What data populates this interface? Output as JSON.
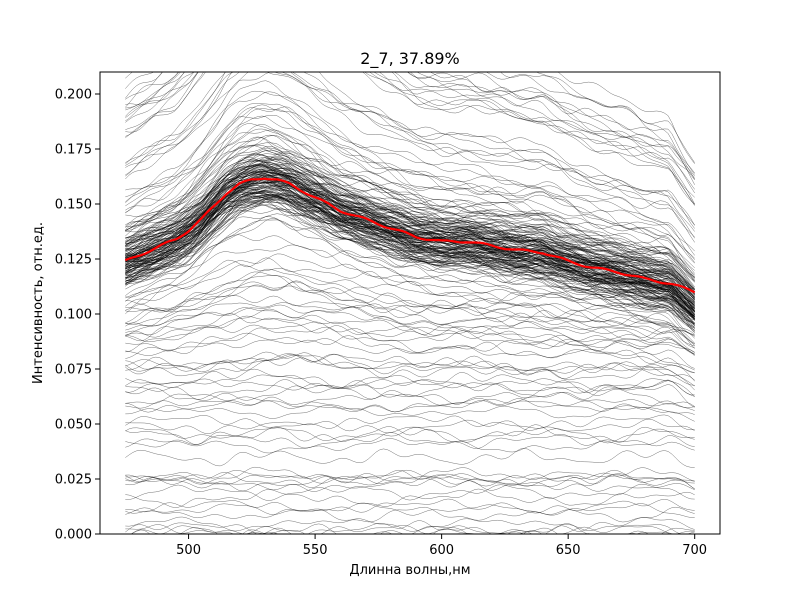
{
  "chart_data": {
    "type": "line",
    "title": "2_7, 37.89%",
    "xlabel": "Длинна волны,нм",
    "ylabel": "Интенсивность, отн.ед.",
    "xlim": [
      465,
      710
    ],
    "ylim": [
      0.0,
      0.21
    ],
    "x_ticks": [
      {
        "value": 500,
        "label": "500"
      },
      {
        "value": 550,
        "label": "550"
      },
      {
        "value": 600,
        "label": "600"
      },
      {
        "value": 650,
        "label": "650"
      },
      {
        "value": 700,
        "label": "700"
      }
    ],
    "y_ticks": [
      {
        "value": 0.0,
        "label": "0.000"
      },
      {
        "value": 0.025,
        "label": "0.025"
      },
      {
        "value": 0.05,
        "label": "0.050"
      },
      {
        "value": 0.075,
        "label": "0.075"
      },
      {
        "value": 0.1,
        "label": "0.100"
      },
      {
        "value": 0.125,
        "label": "0.125"
      },
      {
        "value": 0.15,
        "label": "0.150"
      },
      {
        "value": 0.175,
        "label": "0.175"
      },
      {
        "value": 0.2,
        "label": "0.200"
      }
    ],
    "grid": false,
    "background_spectra": {
      "description_color": "#000000",
      "x_range": [
        475,
        700
      ],
      "count_dense": 140,
      "count_sparse": 110
    },
    "mean_series": {
      "color": "#ff0000",
      "x": [
        475,
        485,
        495,
        500,
        505,
        510,
        515,
        520,
        525,
        530,
        535,
        540,
        545,
        550,
        555,
        560,
        565,
        570,
        575,
        580,
        590,
        600,
        610,
        620,
        630,
        640,
        650,
        660,
        670,
        680,
        690,
        695,
        700
      ],
      "values": [
        0.124,
        0.129,
        0.134,
        0.138,
        0.143,
        0.149,
        0.155,
        0.159,
        0.161,
        0.162,
        0.161,
        0.159,
        0.156,
        0.153,
        0.15,
        0.147,
        0.145,
        0.143,
        0.141,
        0.139,
        0.135,
        0.133,
        0.133,
        0.131,
        0.129,
        0.128,
        0.124,
        0.121,
        0.119,
        0.116,
        0.114,
        0.112,
        0.11
      ]
    },
    "colors": {
      "background_lines": "#000000",
      "mean_line": "#ff0000"
    }
  }
}
